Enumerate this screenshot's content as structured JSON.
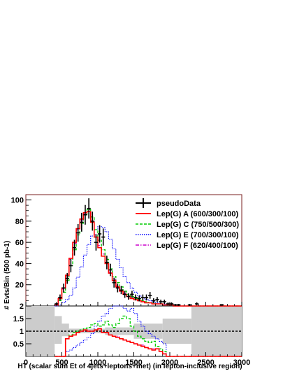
{
  "chart_data": {
    "type": "line",
    "ylabel": "# Evts/Bin (500 pb-1)",
    "xlabel": "HT (scalar sum Et of 4jets+leptons+met) (in lepton-inclusive region)",
    "xlim": [
      0,
      3000
    ],
    "ylim_main": [
      0,
      105
    ],
    "ylim_ratio": [
      0,
      2
    ],
    "x_ticks": [
      "0",
      "500",
      "1000",
      "1500",
      "2000",
      "2500",
      "3000"
    ],
    "y_ticks_main": [
      "20",
      "40",
      "60",
      "80",
      "100"
    ],
    "y_ticks_ratio": [
      "0.5",
      "1",
      "1.5",
      "2"
    ],
    "legend_position": "top-right",
    "colors": {
      "frame": "#7a1f1f",
      "pseudoData": "#000000",
      "A": "#ff0000",
      "C": "#00cc00",
      "E": "#0000ff",
      "F": "#cc00cc",
      "band": "#cccccc"
    },
    "x": [
      425,
      475,
      525,
      575,
      625,
      675,
      725,
      775,
      825,
      875,
      925,
      975,
      1025,
      1075,
      1125,
      1175,
      1225,
      1275,
      1325,
      1375,
      1425,
      1475,
      1525,
      1575,
      1625,
      1675,
      1725,
      1775,
      1825,
      1875,
      1925,
      1975,
      2025,
      2075,
      2125,
      2175,
      2225,
      2275,
      2325,
      2375,
      2425,
      2475,
      2525,
      2575,
      2625,
      2675,
      2725,
      2775,
      2825,
      2875,
      2925,
      2975
    ],
    "pseudoData": {
      "name": "pseudoData",
      "values": [
        2,
        8,
        17,
        26,
        38,
        55,
        69,
        79,
        86,
        92,
        80,
        60,
        68,
        65,
        41,
        34,
        22,
        17,
        15,
        11,
        9,
        11,
        8,
        7,
        8,
        8,
        10,
        5,
        6,
        4,
        4,
        2,
        2,
        1,
        1,
        0,
        0,
        1,
        0,
        2,
        0,
        0,
        0,
        0,
        0,
        0,
        1,
        0,
        0,
        0,
        0,
        0
      ]
    },
    "series": [
      {
        "name": "Lep(G) A (600/300/100)",
        "values": [
          1,
          7,
          17,
          29,
          45,
          60,
          73,
          82,
          88,
          89,
          79,
          65,
          55,
          47,
          40,
          31,
          24,
          18,
          14,
          11,
          9,
          7,
          6,
          5,
          4,
          3,
          3,
          2,
          2,
          2,
          1,
          1,
          1,
          0,
          0,
          0,
          0,
          0,
          0,
          0,
          0,
          0,
          0,
          0,
          0,
          0,
          0,
          0,
          0,
          0,
          0,
          0
        ]
      },
      {
        "name": "Lep(G) C (750/500/300)",
        "values": [
          1,
          5,
          13,
          24,
          38,
          53,
          67,
          78,
          86,
          91,
          84,
          72,
          62,
          53,
          44,
          35,
          28,
          22,
          18,
          14,
          11,
          9,
          7,
          6,
          5,
          4,
          3,
          3,
          2,
          2,
          1,
          1,
          1,
          0,
          0,
          0,
          0,
          0,
          0,
          0,
          0,
          0,
          0,
          0,
          0,
          0,
          0,
          0,
          0,
          0,
          0,
          0
        ]
      },
      {
        "name": "Lep(G) E (700/300/100)",
        "values": [
          0,
          1,
          3,
          6,
          10,
          17,
          27,
          37,
          48,
          58,
          66,
          72,
          75,
          74,
          70,
          63,
          54,
          44,
          36,
          28,
          22,
          17,
          13,
          10,
          8,
          6,
          5,
          4,
          3,
          2,
          2,
          1,
          1,
          1,
          0,
          0,
          0,
          0,
          0,
          0,
          0,
          0,
          0,
          0,
          0,
          0,
          0,
          0,
          0,
          0,
          0,
          0
        ]
      },
      {
        "name": "Lep(G) F (620/400/100)",
        "values": [
          1,
          7,
          16,
          28,
          44,
          59,
          72,
          81,
          87,
          89,
          80,
          67,
          57,
          49,
          41,
          32,
          25,
          19,
          15,
          12,
          9,
          7,
          6,
          5,
          4,
          3,
          3,
          2,
          2,
          2,
          1,
          1,
          1,
          0,
          0,
          0,
          0,
          0,
          0,
          0,
          0,
          0,
          0,
          0,
          0,
          0,
          0,
          0,
          0,
          0,
          0,
          0
        ]
      }
    ],
    "ratio": {
      "band": [
        {
          "x0": 0,
          "x1": 400,
          "lo": 0,
          "hi": 2
        },
        {
          "x0": 400,
          "x1": 500,
          "lo": 0.5,
          "hi": 1.6
        },
        {
          "x0": 500,
          "x1": 600,
          "lo": 0.8,
          "hi": 1.3
        },
        {
          "x0": 600,
          "x1": 1100,
          "lo": 0.92,
          "hi": 1.1
        },
        {
          "x0": 1100,
          "x1": 1500,
          "lo": 0.85,
          "hi": 1.15
        },
        {
          "x0": 1500,
          "x1": 1900,
          "lo": 0.7,
          "hi": 1.3
        },
        {
          "x0": 1900,
          "x1": 2300,
          "lo": 0.5,
          "hi": 1.5
        },
        {
          "x0": 2300,
          "x1": 3000,
          "lo": 0,
          "hi": 2
        }
      ],
      "A": [
        0,
        0,
        0,
        0.7,
        0.8,
        0.85,
        0.95,
        1.0,
        1.05,
        1.0,
        1.0,
        1.05,
        1.1,
        0.95,
        0.95,
        0.85,
        0.8,
        0.75,
        0.7,
        0.65,
        0.6,
        0.55,
        0.5,
        0.45,
        0.4,
        0.35,
        0.3,
        0.25,
        0.3,
        0.2,
        0.1,
        0,
        0,
        0,
        0,
        0,
        0,
        0,
        0,
        0,
        0,
        0,
        0,
        0,
        0,
        0,
        0,
        0,
        0,
        0,
        0,
        0
      ],
      "C": [
        0,
        0,
        0,
        0.7,
        0.85,
        0.95,
        1.0,
        1.05,
        1.1,
        1.15,
        1.25,
        1.3,
        1.2,
        1.25,
        1.4,
        1.25,
        1.15,
        1.3,
        1.5,
        1.6,
        1.5,
        1.2,
        1.0,
        0.8,
        0.7,
        0.6,
        0.55,
        0.6,
        0.4,
        0.3,
        0.2,
        0,
        0,
        0,
        0,
        0,
        0,
        0,
        0,
        0,
        0,
        0,
        0,
        0,
        0,
        0,
        0,
        0,
        0,
        0,
        0,
        0
      ],
      "E": [
        0,
        0,
        0,
        0.2,
        0.25,
        0.35,
        0.45,
        0.55,
        0.65,
        0.75,
        0.9,
        1.2,
        1.4,
        1.6,
        1.7,
        1.9,
        2.0,
        2.0,
        2.0,
        1.9,
        1.8,
        1.9,
        1.7,
        1.4,
        1.2,
        1.0,
        0.9,
        0.8,
        0.7,
        0.6,
        0.5,
        0,
        0,
        0,
        0,
        0,
        0,
        0,
        0,
        0,
        0,
        0,
        0,
        0,
        0,
        0,
        0,
        0,
        0,
        0,
        0,
        0
      ],
      "F": [
        0,
        0,
        0,
        0.7,
        0.8,
        0.85,
        0.95,
        1.0,
        1.05,
        1.0,
        1.0,
        1.05,
        1.1,
        0.95,
        0.95,
        0.85,
        0.8,
        0.8,
        0.7,
        0.65,
        0.6,
        0.55,
        0.5,
        0.45,
        0.45,
        0.35,
        0.3,
        0.3,
        0.3,
        0.2,
        0.1,
        0,
        0,
        0,
        0,
        0,
        0,
        0,
        0,
        0,
        0,
        0,
        0,
        0,
        0,
        0,
        0,
        0,
        0,
        0,
        0,
        0
      ]
    }
  }
}
